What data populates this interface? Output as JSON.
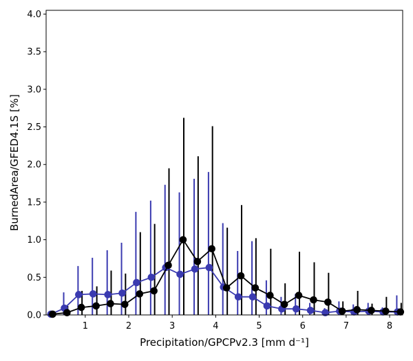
{
  "chart_data": {
    "type": "line",
    "title": "",
    "xlabel": "Precipitation/GPCPv2.3 [mm d⁻¹]",
    "ylabel": "BurnedArea/GFED4.1S [%]",
    "xlim": [
      0.1,
      8.3
    ],
    "ylim": [
      0.0,
      4.05
    ],
    "xticks": [
      1,
      2,
      3,
      4,
      5,
      6,
      7,
      8
    ],
    "xtick_labels": [
      "1",
      "2",
      "3",
      "4",
      "5",
      "6",
      "7",
      "8"
    ],
    "yticks": [
      0.0,
      0.5,
      1.0,
      1.5,
      2.0,
      2.5,
      3.0,
      3.5,
      4.0
    ],
    "ytick_labels": [
      "0.0",
      "0.5",
      "1.0",
      "1.5",
      "2.0",
      "2.5",
      "3.0",
      "3.5",
      "4.0"
    ],
    "grid": false,
    "series": [
      {
        "name": "blue series",
        "color": "#3a3ab0",
        "x": [
          0.21,
          0.52,
          0.85,
          1.18,
          1.52,
          1.85,
          2.18,
          2.52,
          2.85,
          3.18,
          3.52,
          3.85,
          4.18,
          4.52,
          4.85,
          5.18,
          5.52,
          5.85,
          6.18,
          6.52,
          6.85,
          7.18,
          7.52,
          7.85,
          8.18
        ],
        "y": [
          0.01,
          0.09,
          0.27,
          0.28,
          0.27,
          0.29,
          0.43,
          0.5,
          0.63,
          0.54,
          0.61,
          0.63,
          0.37,
          0.24,
          0.24,
          0.12,
          0.08,
          0.08,
          0.06,
          0.03,
          0.05,
          0.04,
          0.05,
          0.04,
          0.04
        ],
        "err_top": [
          0.03,
          0.3,
          0.65,
          0.76,
          0.86,
          0.96,
          1.37,
          1.52,
          1.73,
          1.63,
          1.81,
          1.9,
          1.22,
          0.85,
          0.98,
          0.46,
          0.24,
          0.28,
          0.16,
          0.09,
          0.18,
          0.14,
          0.16,
          0.1,
          0.26
        ]
      },
      {
        "name": "black series",
        "color": "#000000",
        "x": [
          0.25,
          0.58,
          0.91,
          1.25,
          1.58,
          1.91,
          2.25,
          2.58,
          2.91,
          3.25,
          3.58,
          3.91,
          4.25,
          4.58,
          4.91,
          5.25,
          5.58,
          5.91,
          6.25,
          6.58,
          6.91,
          7.25,
          7.58,
          7.91,
          8.25
        ],
        "y": [
          0.01,
          0.03,
          0.1,
          0.12,
          0.15,
          0.14,
          0.28,
          0.32,
          0.66,
          1.0,
          0.71,
          0.88,
          0.36,
          0.52,
          0.36,
          0.26,
          0.14,
          0.26,
          0.2,
          0.17,
          0.05,
          0.07,
          0.06,
          0.05,
          0.04
        ],
        "err_top": [
          0.03,
          0.12,
          0.32,
          0.38,
          0.59,
          0.55,
          1.1,
          1.21,
          1.95,
          2.62,
          2.11,
          2.51,
          1.16,
          1.46,
          1.02,
          0.88,
          0.42,
          0.84,
          0.7,
          0.56,
          0.18,
          0.32,
          0.15,
          0.24,
          0.16
        ]
      }
    ]
  }
}
